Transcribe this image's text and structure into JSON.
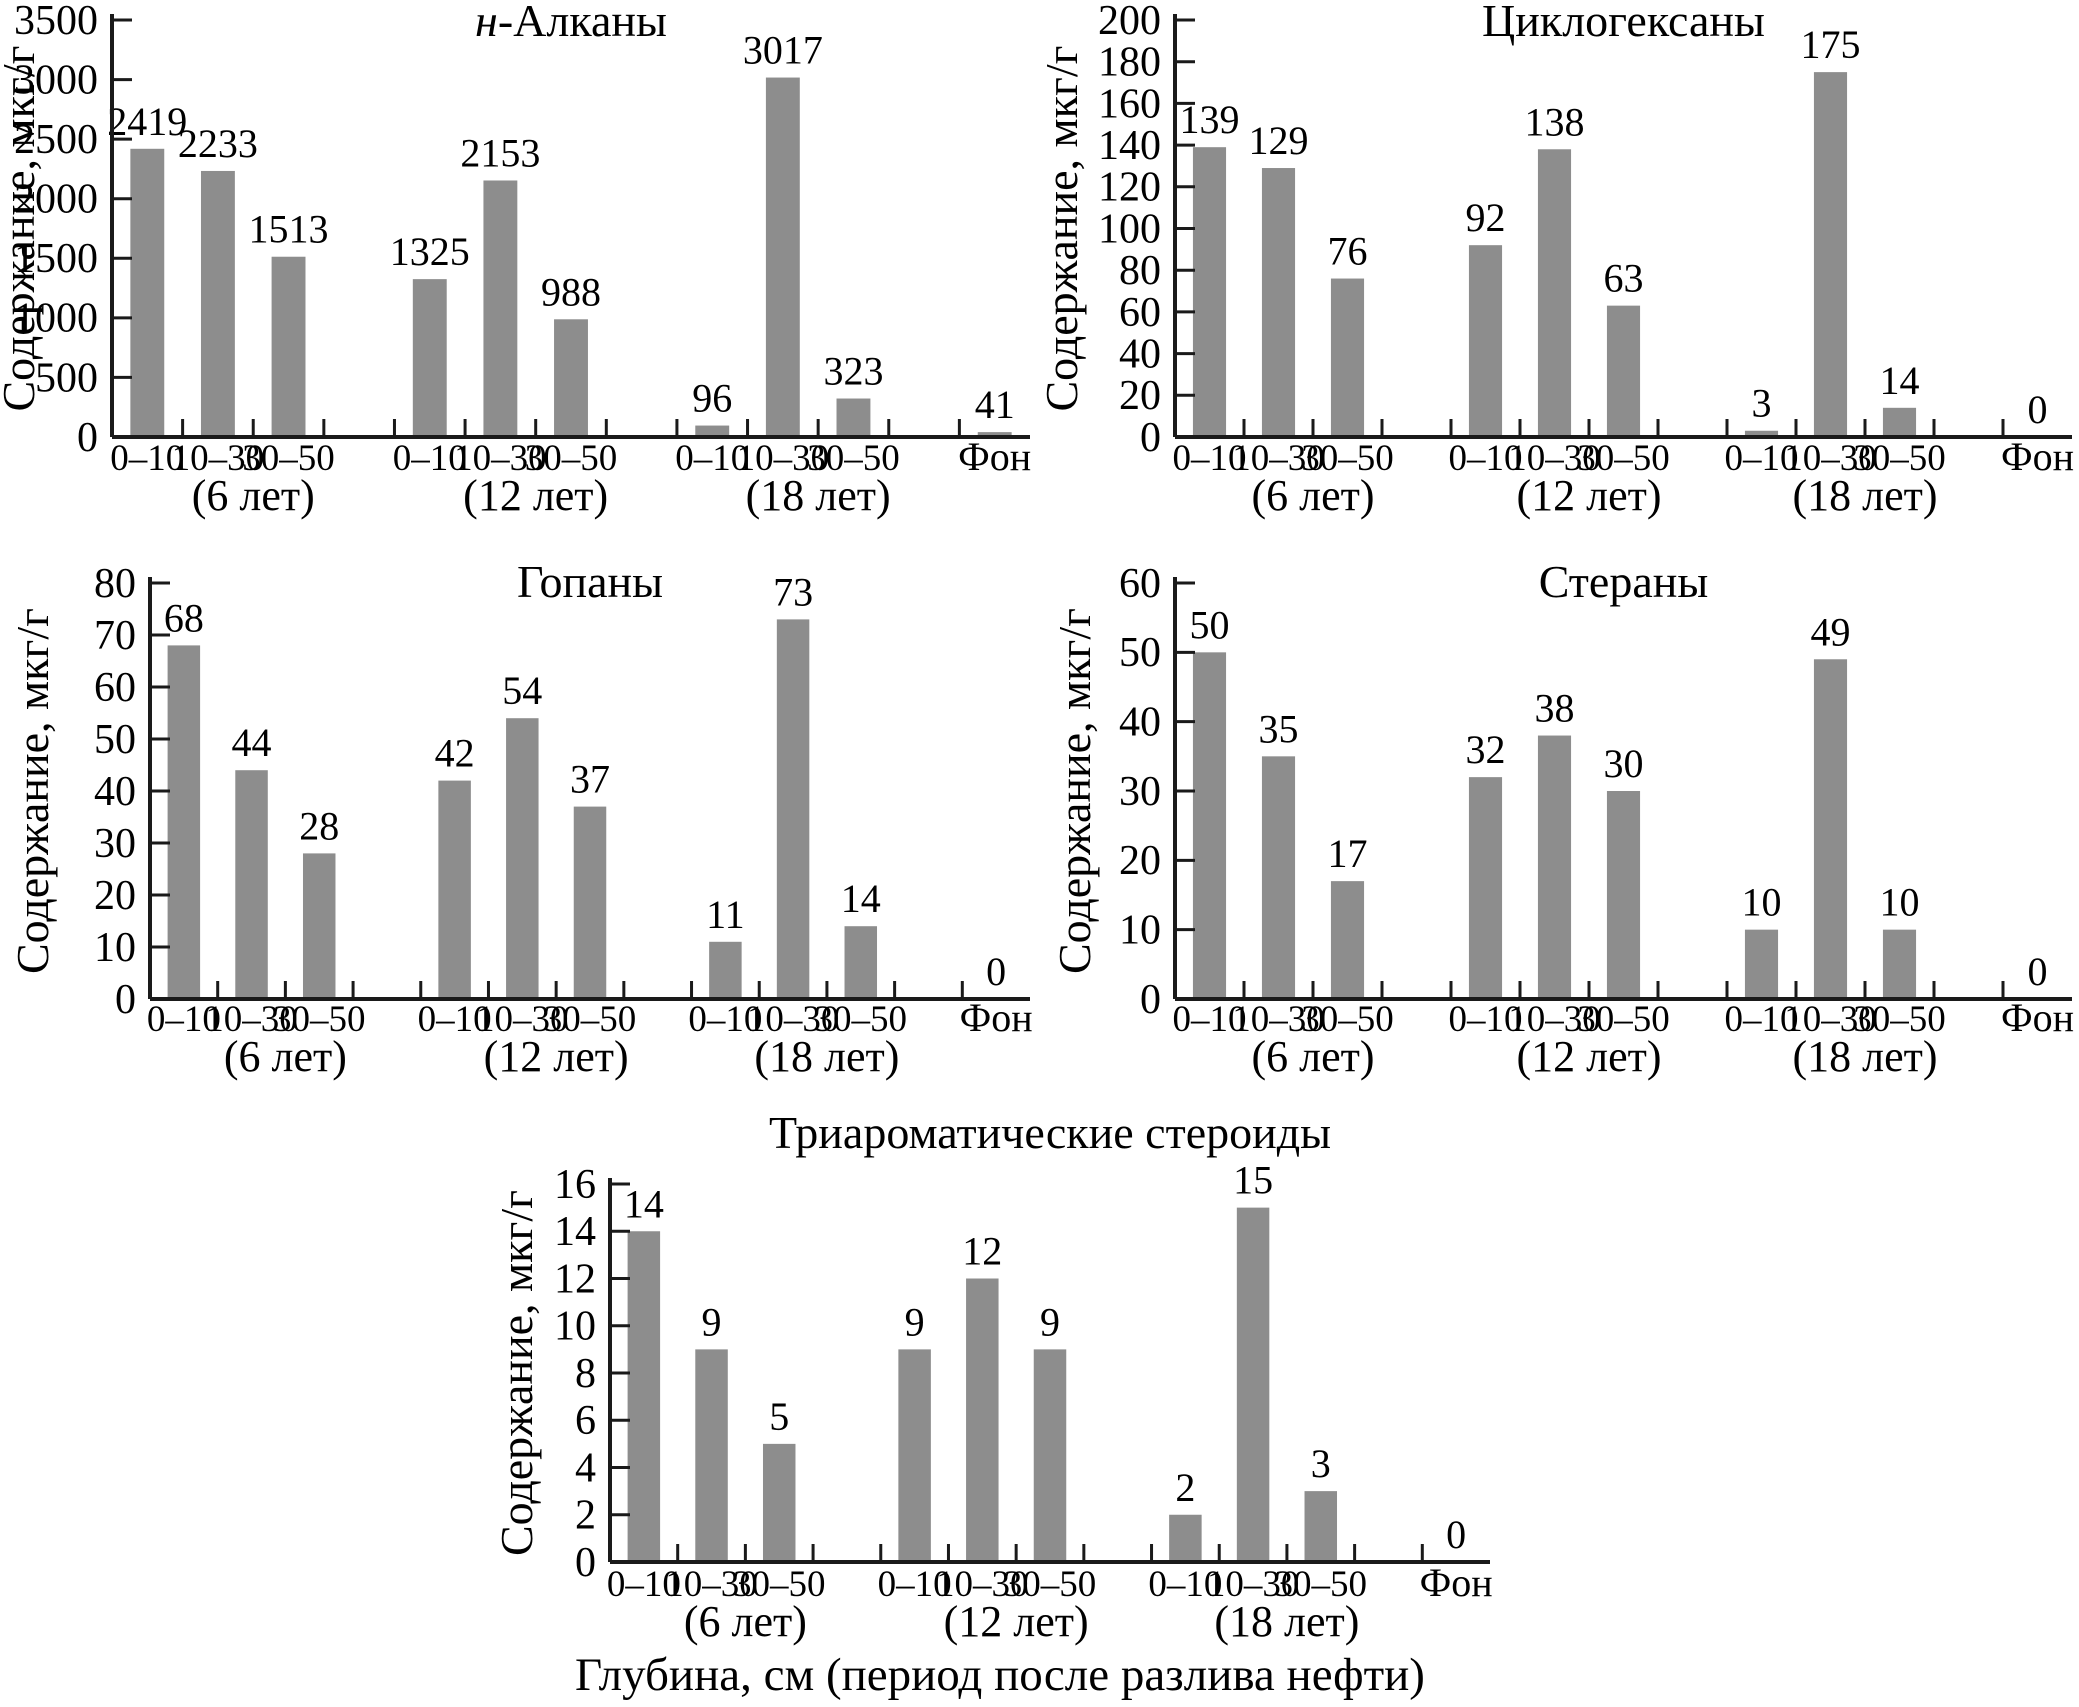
{
  "figure": {
    "xlabel": "Глубина, см (период после разлива нефти)",
    "bar_color": "#8d8d8d",
    "axis_color": "#1a1a1a",
    "text_color": "#000000",
    "background_color": "#ffffff"
  },
  "chart_data": [
    {
      "type": "bar",
      "title": "н-Алканы",
      "title_italic_prefix": "н",
      "ylabel": "Содержание, мкг/г",
      "ylim": [
        0,
        3500
      ],
      "ytick_step": 500,
      "grid": false,
      "categories": [
        "0–10",
        "10–30",
        "30–50"
      ],
      "groups": [
        {
          "label": "(6 лет)",
          "values": [
            2419,
            2233,
            1513
          ]
        },
        {
          "label": "(12 лет)",
          "values": [
            1325,
            2153,
            988
          ]
        },
        {
          "label": "(18 лет)",
          "values": [
            96,
            3017,
            323
          ]
        }
      ],
      "background_bar": {
        "label": "Фон",
        "value": 41
      }
    },
    {
      "type": "bar",
      "title": "Циклогексаны",
      "title_italic_prefix": "",
      "ylabel": "Содержание, мкг/г",
      "ylim": [
        0,
        200
      ],
      "ytick_step": 20,
      "grid": false,
      "categories": [
        "0–10",
        "10–30",
        "30–50"
      ],
      "groups": [
        {
          "label": "(6 лет)",
          "values": [
            139,
            129,
            76
          ]
        },
        {
          "label": "(12 лет)",
          "values": [
            92,
            138,
            63
          ]
        },
        {
          "label": "(18 лет)",
          "values": [
            3,
            175,
            14
          ]
        }
      ],
      "background_bar": {
        "label": "Фон",
        "value": 0
      }
    },
    {
      "type": "bar",
      "title": "Гопаны",
      "title_italic_prefix": "",
      "ylabel": "Содержание, мкг/г",
      "ylim": [
        0,
        80
      ],
      "ytick_step": 10,
      "grid": false,
      "categories": [
        "0–10",
        "10–30",
        "30–50"
      ],
      "groups": [
        {
          "label": "(6 лет)",
          "values": [
            68,
            44,
            28
          ]
        },
        {
          "label": "(12 лет)",
          "values": [
            42,
            54,
            37
          ]
        },
        {
          "label": "(18 лет)",
          "values": [
            11,
            73,
            14
          ]
        }
      ],
      "background_bar": {
        "label": "Фон",
        "value": 0
      }
    },
    {
      "type": "bar",
      "title": "Стераны",
      "title_italic_prefix": "",
      "ylabel": "Содержание, мкг/г",
      "ylim": [
        0,
        60
      ],
      "ytick_step": 10,
      "grid": false,
      "categories": [
        "0–10",
        "10–30",
        "30–50"
      ],
      "groups": [
        {
          "label": "(6 лет)",
          "values": [
            50,
            35,
            17
          ]
        },
        {
          "label": "(12 лет)",
          "values": [
            32,
            38,
            30
          ]
        },
        {
          "label": "(18 лет)",
          "values": [
            10,
            49,
            10
          ]
        }
      ],
      "background_bar": {
        "label": "Фон",
        "value": 0
      }
    },
    {
      "type": "bar",
      "title": "Триароматические стероиды",
      "title_italic_prefix": "",
      "ylabel": "Содержание, мкг/г",
      "ylim": [
        0,
        16
      ],
      "ytick_step": 2,
      "grid": false,
      "categories": [
        "0–10",
        "10–30",
        "30–50"
      ],
      "groups": [
        {
          "label": "(6 лет)",
          "values": [
            14,
            9,
            5
          ]
        },
        {
          "label": "(12 лет)",
          "values": [
            9,
            12,
            9
          ]
        },
        {
          "label": "(18 лет)",
          "values": [
            2,
            15,
            3
          ]
        }
      ],
      "background_bar": {
        "label": "Фон",
        "value": 0
      }
    }
  ]
}
